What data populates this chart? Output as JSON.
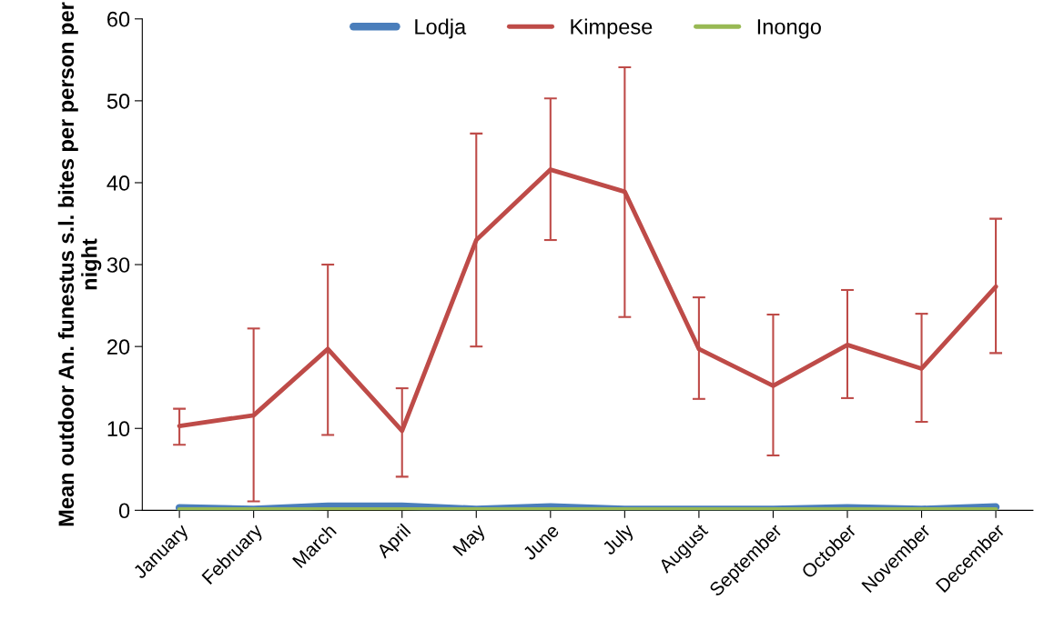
{
  "chart_data": {
    "type": "line",
    "ylabel": "Mean outdoor An. funestus s.l. bites per person per night",
    "categories": [
      "January",
      "February",
      "March",
      "April",
      "May",
      "June",
      "July",
      "August",
      "September",
      "October",
      "November",
      "December"
    ],
    "series": [
      {
        "name": "Lodja",
        "color": "#4a7ebb",
        "values": [
          0.3,
          0.1,
          0.5,
          0.5,
          0.1,
          0.4,
          0.1,
          0.1,
          0.1,
          0.3,
          0.1,
          0.4
        ]
      },
      {
        "name": "Kimpese",
        "color": "#be4b48",
        "values": [
          10.3,
          11.6,
          19.7,
          9.7,
          33,
          41.6,
          38.9,
          19.7,
          15.2,
          20.2,
          17.3,
          27.3
        ],
        "errors": [
          [
            8.0,
            12.4
          ],
          [
            1.1,
            22.2
          ],
          [
            9.2,
            30
          ],
          [
            4.1,
            14.9
          ],
          [
            20,
            46
          ],
          [
            33,
            50.3
          ],
          [
            23.6,
            54.1
          ],
          [
            13.6,
            26
          ],
          [
            6.7,
            23.9
          ],
          [
            13.7,
            26.9
          ],
          [
            10.8,
            24
          ],
          [
            19.2,
            35.6
          ]
        ]
      },
      {
        "name": "Inongo",
        "color": "#98b954",
        "values": [
          0.1,
          0.1,
          0.1,
          0.1,
          0.1,
          0.1,
          0.1,
          0.1,
          0.1,
          0.1,
          0.1,
          0.1
        ]
      }
    ],
    "ylim": [
      0,
      60
    ],
    "yticks": [
      0,
      10,
      20,
      30,
      40,
      50,
      60
    ],
    "grid": false,
    "legend": "top",
    "marker": "none",
    "line_style": "solid"
  }
}
